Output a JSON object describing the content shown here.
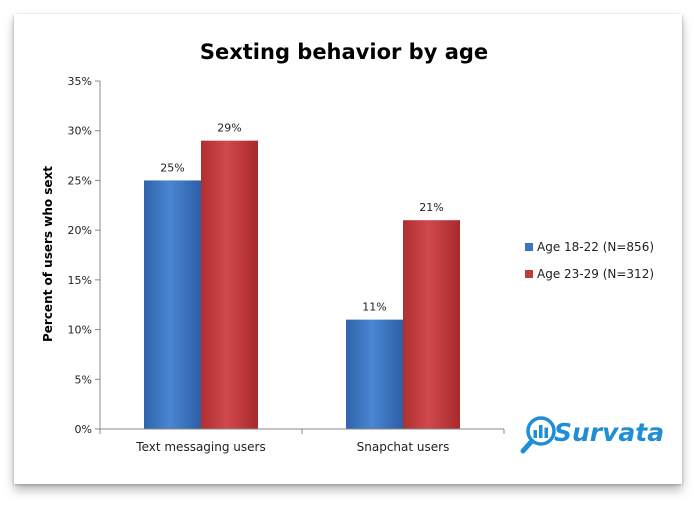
{
  "chart_data": {
    "type": "bar",
    "title": "Sexting behavior by age",
    "ylabel": "Percent of users who sext",
    "xlabel": "",
    "categories": [
      "Text messaging users",
      "Snapchat users"
    ],
    "series": [
      {
        "name": "Age 18-22 (N=856)",
        "values": [
          25,
          11
        ],
        "color": "#3a75c4"
      },
      {
        "name": "Age 23-29 (N=312)",
        "values": [
          29,
          21
        ],
        "color": "#c0393b"
      }
    ],
    "ylim": [
      0,
      35
    ],
    "yticks": [
      0,
      5,
      10,
      15,
      20,
      25,
      30,
      35
    ],
    "value_format": "percent",
    "grid": false,
    "legend_position": "right"
  },
  "brand": {
    "logo_text": "Survata",
    "color": "#1f8ed6"
  }
}
